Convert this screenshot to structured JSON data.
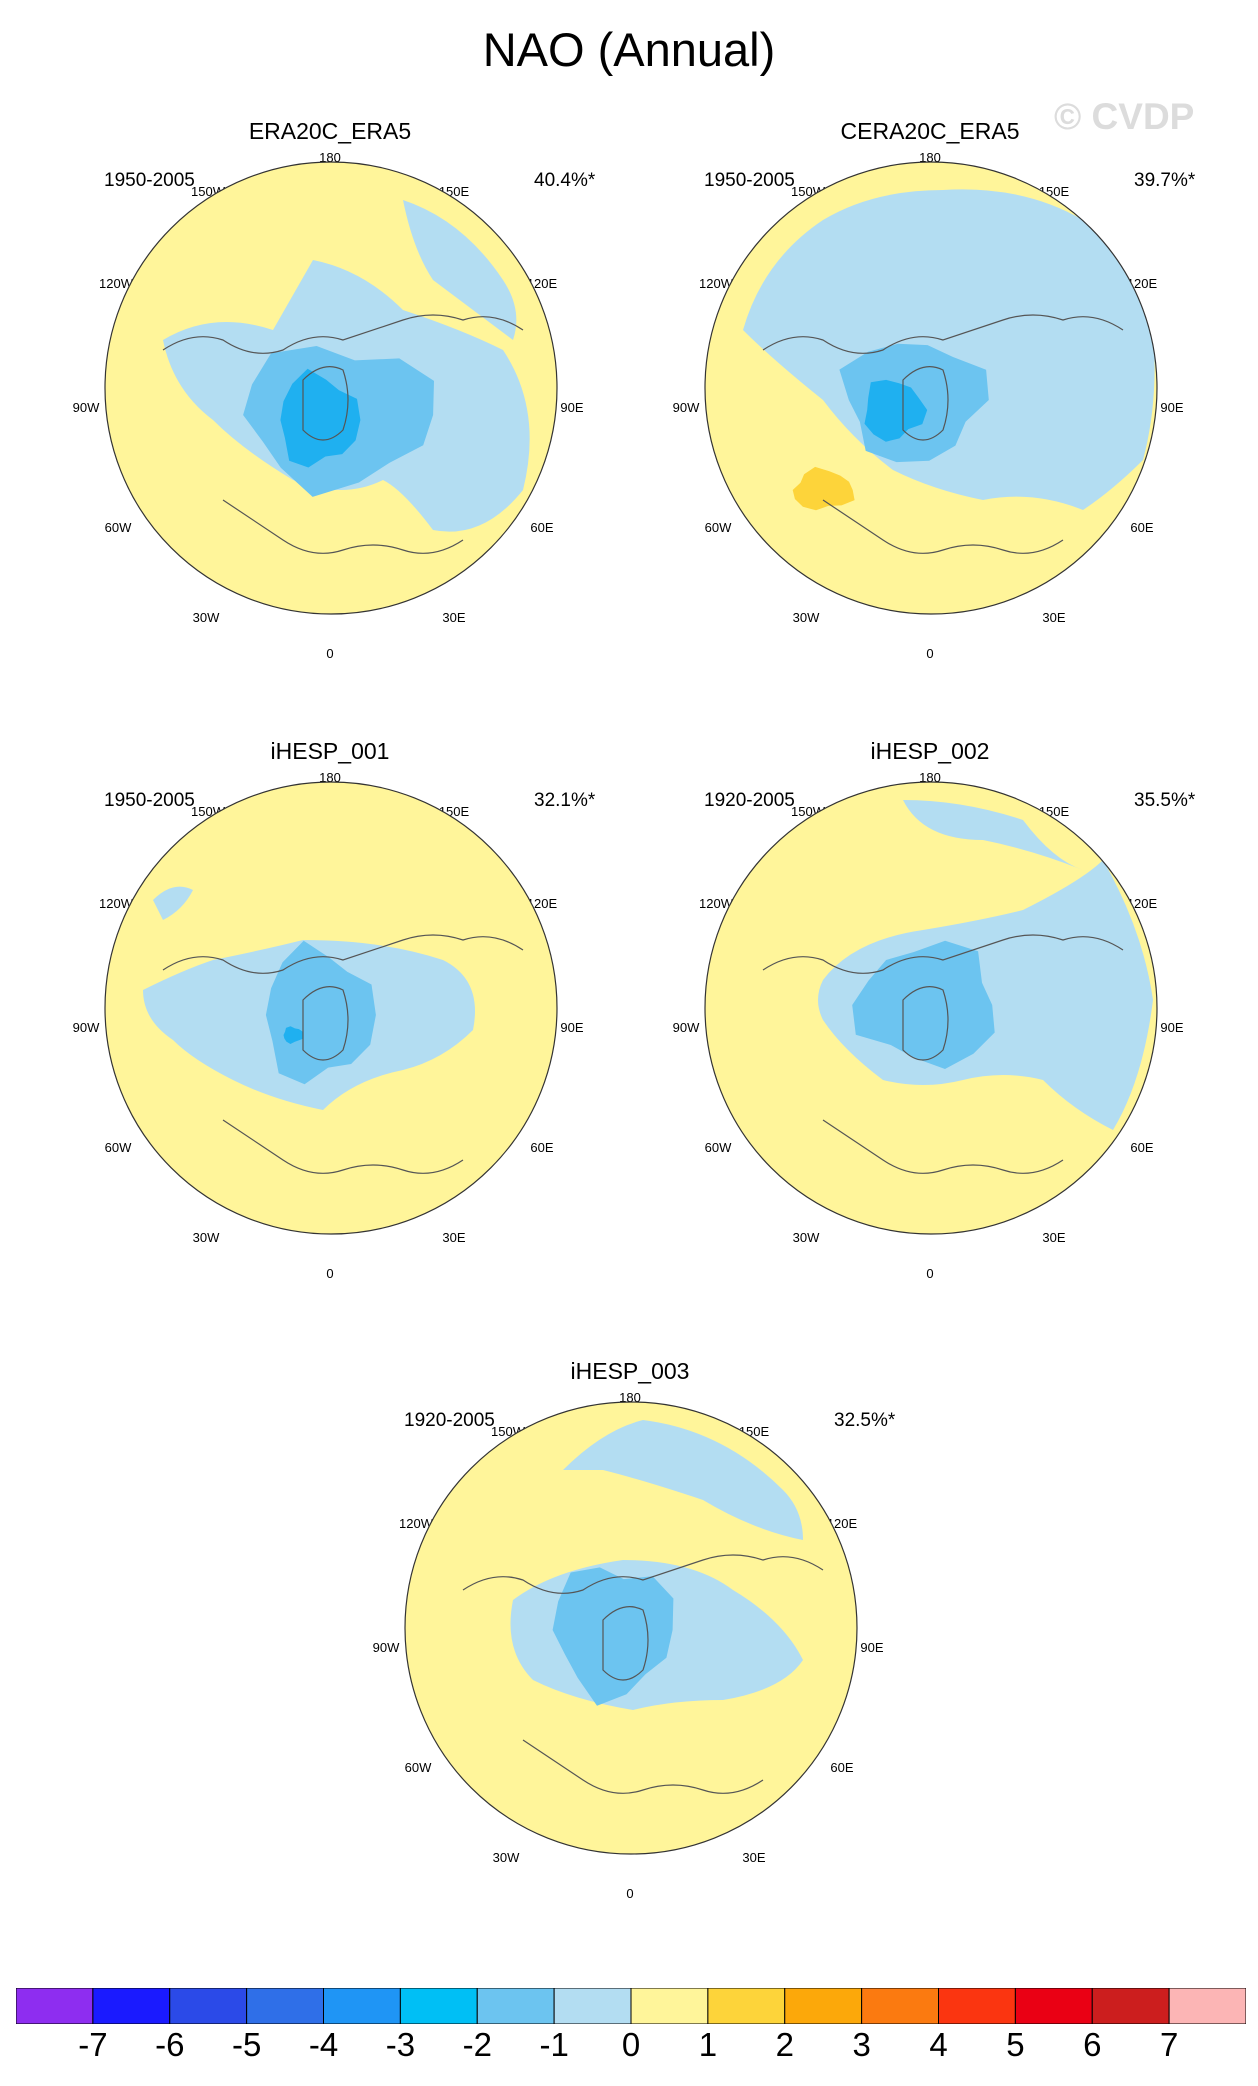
{
  "title": "NAO (Annual)",
  "watermark": "© CVDP",
  "longitude_labels": {
    "l180": "180",
    "l150w": "150W",
    "l150e": "150E",
    "l120w": "120W",
    "l120e": "120E",
    "l90w": "90W",
    "l90e": "90E",
    "l60w": "60W",
    "l60e": "60E",
    "l30w": "30W",
    "l30e": "30E",
    "l0": "0"
  },
  "panels": [
    {
      "name": "ERA20C_ERA5",
      "period": "1950-2005",
      "pct": "40.4%*",
      "variant": "a"
    },
    {
      "name": "CERA20C_ERA5",
      "period": "1950-2005",
      "pct": "39.7%*",
      "variant": "b"
    },
    {
      "name": "iHESP_001",
      "period": "1950-2005",
      "pct": "32.1%*",
      "variant": "c"
    },
    {
      "name": "iHESP_002",
      "period": "1920-2005",
      "pct": "35.5%*",
      "variant": "d"
    },
    {
      "name": "iHESP_003",
      "period": "1920-2005",
      "pct": "32.5%*",
      "variant": "e"
    }
  ],
  "colorbar": {
    "labels": [
      "-7",
      "-6",
      "-5",
      "-4",
      "-3",
      "-2",
      "-1",
      "0",
      "1",
      "2",
      "3",
      "4",
      "5",
      "6",
      "7"
    ],
    "colors": [
      "#8e2df0",
      "#1a1aff",
      "#2b4ae8",
      "#2f6fe8",
      "#1f95f5",
      "#00bff5",
      "#6cc4f0",
      "#b3ddf2",
      "#fff59a",
      "#fdd43a",
      "#fca80a",
      "#fb7a10",
      "#fb3510",
      "#ea0014",
      "#cc1e1e",
      "#fcb5b5"
    ]
  },
  "map_colors": {
    "pos1": "#fff59a",
    "pos2": "#fdd43a",
    "neg1": "#b3ddf2",
    "neg2": "#6cc4f0",
    "neg3": "#1fb0f0"
  }
}
